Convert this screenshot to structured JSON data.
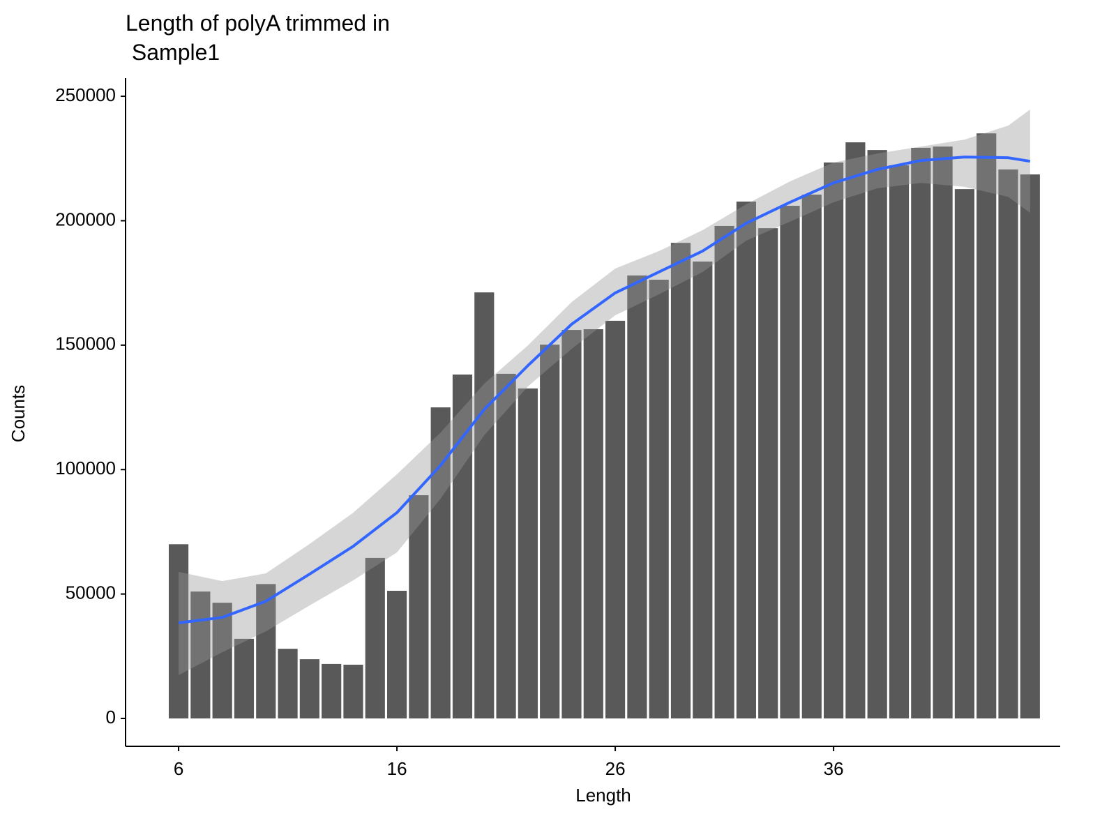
{
  "chart_data": {
    "type": "bar",
    "title": "Length of polyA trimmed in\n Sample1",
    "x_label": "Length",
    "y_label": "Counts",
    "color": "#595959",
    "x": [
      6,
      7,
      8,
      9,
      10,
      11,
      12,
      13,
      14,
      15,
      16,
      17,
      18,
      19,
      20,
      21,
      22,
      23,
      24,
      25,
      26,
      27,
      28,
      29,
      30,
      31,
      32,
      33,
      34,
      35,
      36,
      37,
      38,
      39,
      40,
      41,
      42,
      43,
      44,
      45
    ],
    "values": [
      70000,
      51000,
      46500,
      32000,
      54000,
      28000,
      23800,
      21900,
      21600,
      64500,
      51300,
      89700,
      125000,
      138200,
      171200,
      138500,
      132600,
      150200,
      156100,
      156400,
      159800,
      178000,
      176300,
      191100,
      183600,
      197900,
      207700,
      197000,
      206000,
      210500,
      223400,
      231500,
      228400,
      222300,
      229300,
      229800,
      212700,
      235100,
      220600,
      218600
    ],
    "smooth": {
      "color": "#3366FF",
      "band_color": "#999999",
      "x": [
        6,
        8,
        10,
        12,
        14,
        16,
        18,
        20,
        22,
        24,
        26,
        28,
        30,
        32,
        34,
        36,
        38,
        40,
        42,
        44,
        45
      ],
      "values": [
        38400,
        40600,
        47100,
        58000,
        69200,
        82700,
        101700,
        124200,
        141800,
        158400,
        171000,
        179400,
        187800,
        199000,
        207400,
        215200,
        220600,
        224200,
        225600,
        225300,
        223900
      ],
      "upper": [
        58900,
        55200,
        58300,
        70100,
        82700,
        98100,
        114900,
        134500,
        149900,
        167300,
        180800,
        187800,
        196200,
        206600,
        215800,
        223400,
        227000,
        229800,
        232600,
        238200,
        244700
      ],
      "lower": [
        17400,
        26600,
        35000,
        45400,
        55500,
        66700,
        88300,
        113800,
        133400,
        148500,
        162000,
        170400,
        179400,
        192000,
        199600,
        207400,
        213000,
        215200,
        213600,
        209600,
        203200
      ]
    },
    "xlim": [
      3.57,
      46.38
    ],
    "ylim": [
      -11200,
      257300
    ],
    "xticks": [
      6,
      16,
      26,
      36
    ],
    "yticks": [
      0,
      50000,
      100000,
      150000,
      200000,
      250000
    ],
    "grid": false
  }
}
